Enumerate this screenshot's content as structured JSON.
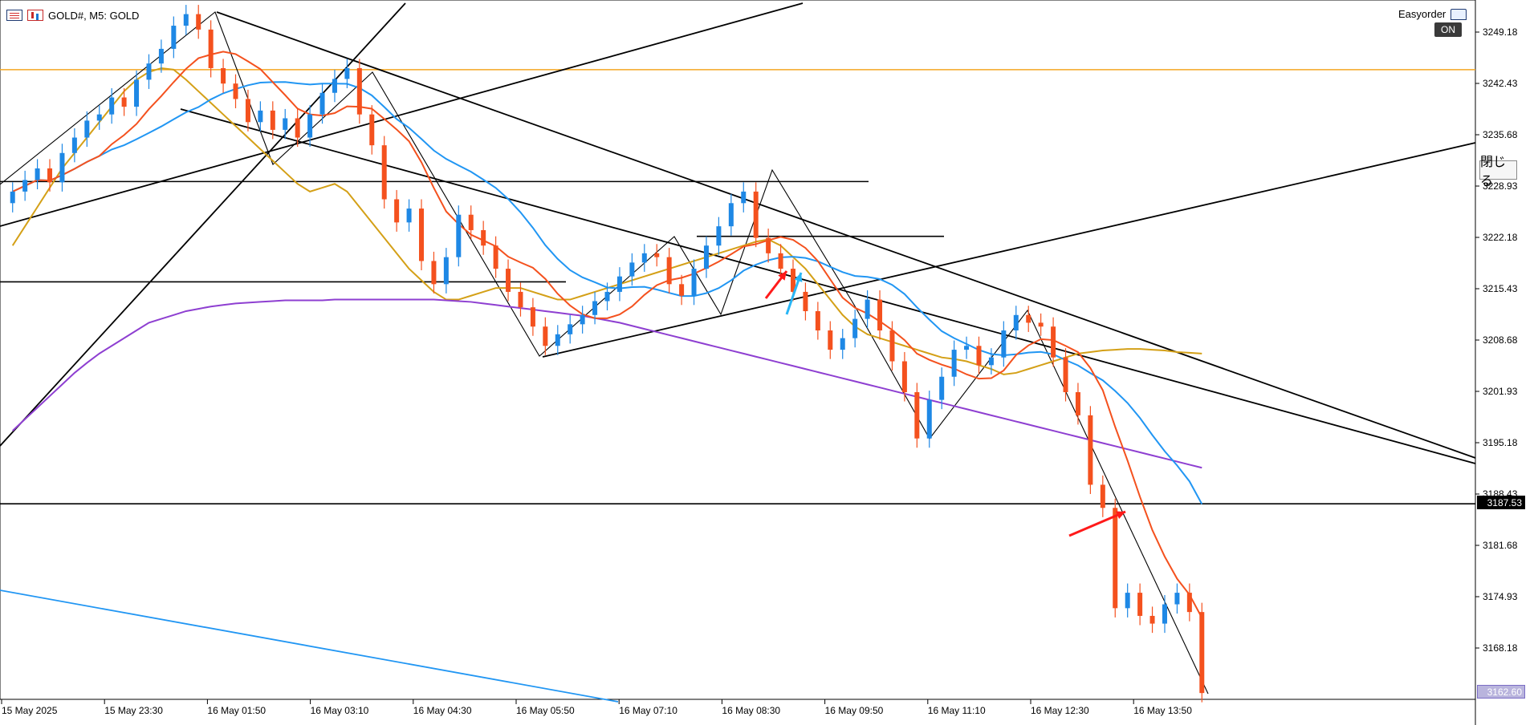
{
  "header": {
    "symbol": "GOLD#, M5:  GOLD"
  },
  "ea": {
    "name": "Easyorder",
    "on_label": "ON",
    "close_label": "閉じる"
  },
  "price_axis": {
    "ticks": [
      "3249.18",
      "3242.43",
      "3235.68",
      "3228.93",
      "3222.18",
      "3215.43",
      "3208.68",
      "3201.93",
      "3195.18",
      "3188.43",
      "3181.68",
      "3174.93",
      "3168.18"
    ],
    "current_price": "3187.53",
    "bottom_price": "3162.60"
  },
  "time_axis": {
    "ticks": [
      "15 May 2025",
      "15 May 23:30",
      "16 May 01:50",
      "16 May 03:10",
      "16 May 04:30",
      "16 May 05:50",
      "16 May 07:10",
      "16 May 08:30",
      "16 May 09:50",
      "16 May 11:10",
      "16 May 12:30",
      "16 May 13:50"
    ]
  },
  "colors": {
    "bull": "#1e88e5",
    "bear": "#f4511e",
    "ma_fast": "#f4511e",
    "ma_mid": "#2196f3",
    "ma_slow": "#d4a017",
    "ma_long": "#8e3fd1",
    "level": "#f5a623",
    "trendline": "#000000",
    "blue_line": "#2196f3"
  },
  "chart_data": {
    "type": "candlestick",
    "symbol": "GOLD#",
    "timeframe": "M5",
    "ylim": [
      3162.6,
      3252.0
    ],
    "horizontal_levels": [
      3243.8,
      3229.3,
      3216.3,
      3222.2,
      3187.53
    ],
    "closes": [
      3228.0,
      3229.5,
      3231.0,
      3229.2,
      3233.0,
      3235.0,
      3237.2,
      3238.0,
      3240.2,
      3239.0,
      3242.5,
      3244.6,
      3246.5,
      3249.5,
      3251.0,
      3249.0,
      3244.0,
      3242.0,
      3240.0,
      3237.0,
      3238.5,
      3236.0,
      3237.5,
      3235.0,
      3238.0,
      3240.8,
      3242.6,
      3244.0,
      3238.0,
      3234.0,
      3227.0,
      3224.0,
      3225.8,
      3219.0,
      3216.0,
      3219.5,
      3225.0,
      3223.0,
      3221.0,
      3218.0,
      3215.0,
      3213.0,
      3210.5,
      3208.0,
      3209.5,
      3210.8,
      3212.0,
      3213.8,
      3215.0,
      3217.0,
      3218.8,
      3220.0,
      3219.5,
      3216.0,
      3214.5,
      3218.0,
      3221.0,
      3223.5,
      3226.5,
      3228.0,
      3222.0,
      3220.0,
      3218.0,
      3215.0,
      3212.5,
      3210.0,
      3207.5,
      3209.0,
      3211.5,
      3214.0,
      3210.0,
      3206.0,
      3202.0,
      3196.0,
      3201.0,
      3204.0,
      3207.5,
      3208.0,
      3205.5,
      3206.5,
      3210.0,
      3212.0,
      3211.0,
      3210.5,
      3206.5,
      3202.0,
      3199.0,
      3190.0,
      3187.0,
      3174.0,
      3176.0,
      3173.0,
      3172.0,
      3174.5,
      3176.0,
      3173.5,
      3163.0
    ],
    "series": [
      {
        "name": "MA fast",
        "values": [
          3221,
          3223.5,
          3226,
          3228.5,
          3231,
          3233,
          3235,
          3237,
          3239,
          3241,
          3242.5,
          3243.5,
          3244,
          3243.8,
          3242.5,
          3241,
          3239.5,
          3238,
          3236.5,
          3235,
          3233.5,
          3232,
          3230.5,
          3229,
          3228,
          3228.5,
          3229,
          3228,
          3226,
          3224,
          3222,
          3220,
          3218,
          3216.5,
          3215,
          3214,
          3214,
          3214.5,
          3215,
          3215.5,
          3215.5,
          3215.5,
          3215,
          3214.5,
          3214,
          3214,
          3214.5,
          3215,
          3215.5,
          3216,
          3216.5,
          3217,
          3217.5,
          3218,
          3218.5,
          3219,
          3219.5,
          3220,
          3220.5,
          3221,
          3221.5,
          3221.8,
          3221,
          3219.5,
          3218,
          3216,
          3214,
          3212,
          3210.5,
          3209.5,
          3209,
          3208.5,
          3208,
          3207.5,
          3207,
          3206.5,
          3206.3,
          3206,
          3205.5,
          3205,
          3204.3,
          3204.5,
          3205,
          3205.5,
          3206,
          3206.5,
          3207,
          3207.2,
          3207.4,
          3207.5,
          3207.6,
          3207.6,
          3207.5,
          3207.4,
          3207.2,
          3207.1,
          3207.0
        ]
      },
      {
        "name": "MA long",
        "values": [
          3197,
          3198.5,
          3200,
          3201.5,
          3203,
          3204.5,
          3205.8,
          3207,
          3208,
          3209,
          3210,
          3211,
          3211.5,
          3212,
          3212.5,
          3212.8,
          3213.1,
          3213.3,
          3213.5,
          3213.6,
          3213.7,
          3213.8,
          3213.9,
          3213.9,
          3213.9,
          3213.9,
          3214,
          3214,
          3214,
          3214,
          3214,
          3214,
          3214,
          3214,
          3214,
          3213.9,
          3213.8,
          3213.7,
          3213.5,
          3213.3,
          3213.1,
          3212.9,
          3212.7,
          3212.5,
          3212.3,
          3212.1,
          3211.9,
          3211.6,
          3211.3,
          3211,
          3210.6,
          3210.2,
          3209.8,
          3209.4,
          3209,
          3208.6,
          3208.2,
          3207.8,
          3207.4,
          3207,
          3206.6,
          3206.2,
          3205.8,
          3205.4,
          3205,
          3204.6,
          3204.2,
          3203.8,
          3203.4,
          3203,
          3202.6,
          3202.2,
          3201.8,
          3201.4,
          3201,
          3200.6,
          3200.2,
          3199.8,
          3199.4,
          3199,
          3198.6,
          3198.2,
          3197.8,
          3197.4,
          3197,
          3196.6,
          3196.2,
          3195.8,
          3195.4,
          3195,
          3194.6,
          3194.2,
          3193.8,
          3193.4,
          3193,
          3192.6,
          3192.2
        ]
      }
    ]
  }
}
